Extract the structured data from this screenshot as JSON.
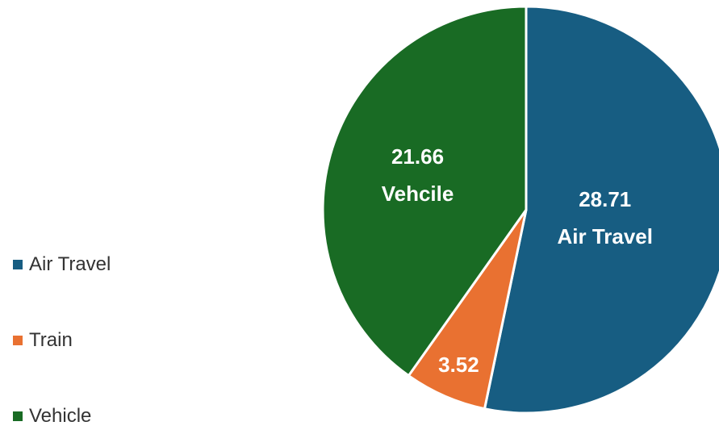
{
  "chart_data": {
    "type": "pie",
    "categories": [
      "Air Travel",
      "Train",
      "Vehicle"
    ],
    "values": [
      28.71,
      3.52,
      21.66
    ],
    "data_label_names": [
      "Air Travel",
      null,
      "Vehcile"
    ],
    "colors": [
      "#175d82",
      "#e97131",
      "#196b24"
    ],
    "legend": "left"
  }
}
